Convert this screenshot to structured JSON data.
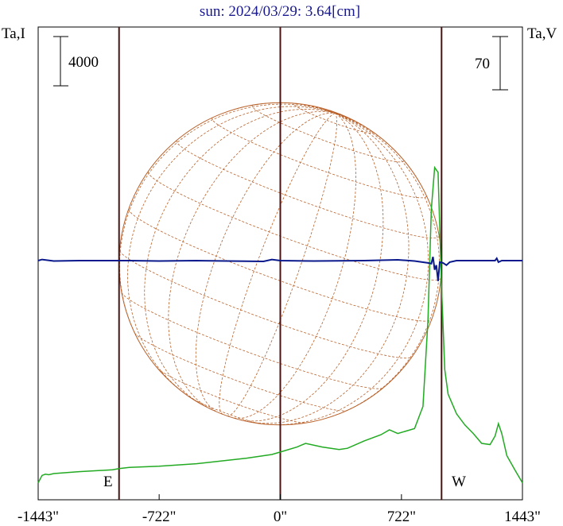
{
  "chart_data": {
    "type": "line",
    "title": "sun: 2024/03/29: 3.64[cm]",
    "left_axis_label": "Ta,I",
    "right_axis_label": "Ta,V",
    "scale_bar_left": "4000",
    "scale_bar_right": "70",
    "east_label": "E",
    "west_label": "W",
    "x_ticks": [
      {
        "value": -1443,
        "label": "-1443\""
      },
      {
        "value": -722,
        "label": "-722\""
      },
      {
        "value": 0,
        "label": "0\""
      },
      {
        "value": 722,
        "label": "722\""
      },
      {
        "value": 1443,
        "label": "1443\""
      }
    ],
    "xlim": [
      -1443,
      1443
    ],
    "limb_markers_arcsec": [
      -961,
      0,
      961
    ],
    "series": [
      {
        "name": "Ta,I",
        "color": "#22aa22",
        "axis": "left",
        "points": [
          [
            -1443,
            800
          ],
          [
            -1420,
            1400
          ],
          [
            -1400,
            1500
          ],
          [
            -1380,
            1450
          ],
          [
            -1350,
            1550
          ],
          [
            -1200,
            1700
          ],
          [
            -1000,
            1850
          ],
          [
            -961,
            1950
          ],
          [
            -900,
            2050
          ],
          [
            -722,
            2150
          ],
          [
            -500,
            2350
          ],
          [
            -200,
            2800
          ],
          [
            -50,
            3100
          ],
          [
            0,
            3300
          ],
          [
            100,
            3700
          ],
          [
            150,
            4000
          ],
          [
            250,
            3700
          ],
          [
            350,
            3500
          ],
          [
            400,
            3600
          ],
          [
            500,
            4200
          ],
          [
            600,
            4700
          ],
          [
            650,
            5100
          ],
          [
            700,
            4800
          ],
          [
            800,
            5200
          ],
          [
            850,
            7000
          ],
          [
            880,
            14000
          ],
          [
            900,
            23000
          ],
          [
            920,
            26400
          ],
          [
            940,
            26000
          ],
          [
            960,
            17000
          ],
          [
            980,
            10000
          ],
          [
            1000,
            8000
          ],
          [
            1050,
            6400
          ],
          [
            1100,
            5500
          ],
          [
            1150,
            4800
          ],
          [
            1200,
            4000
          ],
          [
            1250,
            3900
          ],
          [
            1280,
            4600
          ],
          [
            1300,
            5600
          ],
          [
            1320,
            4800
          ],
          [
            1350,
            3000
          ],
          [
            1400,
            1800
          ],
          [
            1443,
            800
          ]
        ]
      },
      {
        "name": "Ta,V",
        "color": "#0a1a8c",
        "axis": "right",
        "points": [
          [
            -1443,
            0
          ],
          [
            -1420,
            1.5
          ],
          [
            -1350,
            -0.5
          ],
          [
            -1200,
            0
          ],
          [
            -1000,
            0
          ],
          [
            -900,
            0
          ],
          [
            -722,
            -0.5
          ],
          [
            -500,
            0
          ],
          [
            -100,
            -1
          ],
          [
            -50,
            1.5
          ],
          [
            0,
            0
          ],
          [
            200,
            -0.5
          ],
          [
            500,
            0
          ],
          [
            700,
            1
          ],
          [
            800,
            -0.5
          ],
          [
            880,
            -3
          ],
          [
            900,
            -4
          ],
          [
            910,
            5
          ],
          [
            920,
            -12
          ],
          [
            930,
            -6
          ],
          [
            940,
            -27
          ],
          [
            950,
            -2
          ],
          [
            970,
            -3
          ],
          [
            990,
            -6
          ],
          [
            1010,
            -2
          ],
          [
            1050,
            0
          ],
          [
            1150,
            0
          ],
          [
            1280,
            0
          ],
          [
            1290,
            3
          ],
          [
            1300,
            -2
          ],
          [
            1320,
            0
          ],
          [
            1443,
            0
          ]
        ]
      }
    ],
    "solar_disk": {
      "radius_arcsec": 961,
      "color": "#b9622b"
    }
  }
}
